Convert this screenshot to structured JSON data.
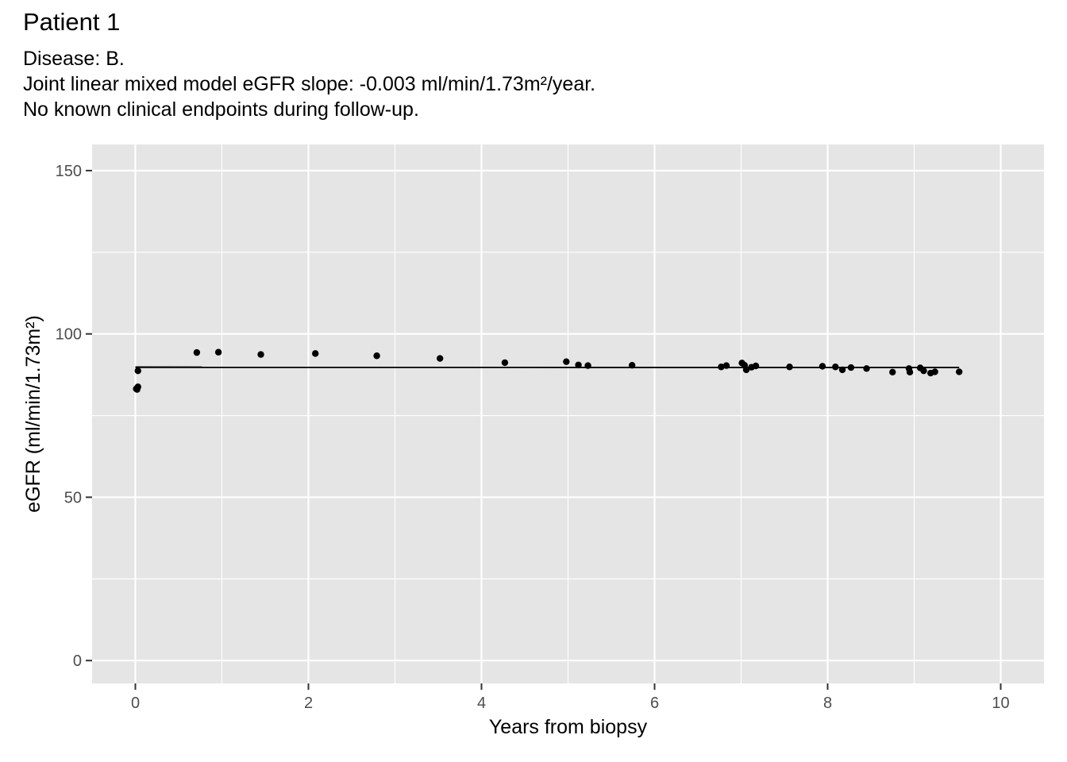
{
  "chart_data": {
    "type": "scatter",
    "title": "Patient 1",
    "subtitle": [
      "Disease: B.",
      "Joint linear mixed model eGFR slope: -0.003 ml/min/1.73m²/year.",
      "No known clinical endpoints during follow-up."
    ],
    "xlabel": "Years from biopsy",
    "ylabel": "eGFR (ml/min/1.73m²)",
    "xlim": [
      -0.5,
      10.5
    ],
    "ylim": [
      -7,
      158
    ],
    "x_ticks": [
      0,
      2,
      4,
      6,
      8,
      10
    ],
    "y_ticks": [
      0,
      50,
      100,
      150
    ],
    "x_tick_labels": [
      "0",
      "2",
      "4",
      "6",
      "8",
      "10"
    ],
    "y_tick_labels": [
      "0",
      "50",
      "100",
      "150"
    ],
    "grid": true,
    "background": "#e5e5e5",
    "grid_color": "#ffffff",
    "point_color": "#000000",
    "series": [
      {
        "points": [
          {
            "x": 0.01,
            "y": 83.2
          },
          {
            "x": 0.02,
            "y": 83.0
          },
          {
            "x": 0.03,
            "y": 83.8
          },
          {
            "x": 0.03,
            "y": 88.7
          },
          {
            "x": 0.71,
            "y": 94.3
          },
          {
            "x": 0.96,
            "y": 94.4
          },
          {
            "x": 1.45,
            "y": 93.7
          },
          {
            "x": 2.08,
            "y": 94.0
          },
          {
            "x": 2.79,
            "y": 93.3
          },
          {
            "x": 3.52,
            "y": 92.5
          },
          {
            "x": 4.27,
            "y": 91.2
          },
          {
            "x": 4.98,
            "y": 91.5
          },
          {
            "x": 5.12,
            "y": 90.5
          },
          {
            "x": 5.23,
            "y": 90.3
          },
          {
            "x": 5.74,
            "y": 90.4
          },
          {
            "x": 6.77,
            "y": 89.9
          },
          {
            "x": 6.83,
            "y": 90.3
          },
          {
            "x": 7.01,
            "y": 91.1
          },
          {
            "x": 7.04,
            "y": 90.4
          },
          {
            "x": 7.06,
            "y": 89.0
          },
          {
            "x": 7.12,
            "y": 89.8
          },
          {
            "x": 7.17,
            "y": 90.2
          },
          {
            "x": 7.56,
            "y": 89.9
          },
          {
            "x": 7.94,
            "y": 90.1
          },
          {
            "x": 8.09,
            "y": 89.9
          },
          {
            "x": 8.17,
            "y": 89.0
          },
          {
            "x": 8.27,
            "y": 89.7
          },
          {
            "x": 8.45,
            "y": 89.4
          },
          {
            "x": 8.75,
            "y": 88.3
          },
          {
            "x": 8.94,
            "y": 89.4
          },
          {
            "x": 8.95,
            "y": 88.3
          },
          {
            "x": 9.07,
            "y": 89.6
          },
          {
            "x": 9.11,
            "y": 88.7
          },
          {
            "x": 9.19,
            "y": 88.0
          },
          {
            "x": 9.24,
            "y": 88.4
          },
          {
            "x": 9.52,
            "y": 88.4
          }
        ]
      }
    ],
    "fit_line": {
      "x": [
        0.0,
        9.52
      ],
      "y": [
        89.8,
        89.77
      ]
    }
  }
}
